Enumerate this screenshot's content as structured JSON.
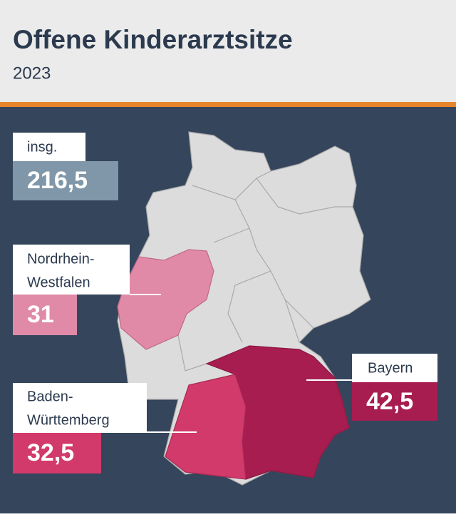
{
  "header": {
    "title": "Offene Kinderarztsitze",
    "subtitle": "2023"
  },
  "total": {
    "label": "insg.",
    "value": "216,5"
  },
  "regions": [
    {
      "label": [
        "Nordrhein-",
        "Westfalen"
      ],
      "value": "31"
    },
    {
      "label": [
        "Baden-",
        "Württemberg"
      ],
      "value": "32,5"
    },
    {
      "label": [
        "Bayern"
      ],
      "value": "42,5"
    }
  ]
}
